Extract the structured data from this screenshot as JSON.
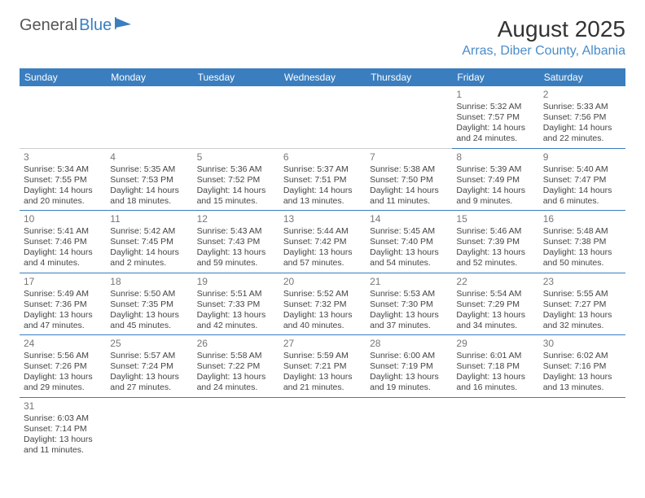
{
  "logo": {
    "text1": "General",
    "text2": "Blue"
  },
  "title": "August 2025",
  "location": "Arras, Diber County, Albania",
  "day_headers": [
    "Sunday",
    "Monday",
    "Tuesday",
    "Wednesday",
    "Thursday",
    "Friday",
    "Saturday"
  ],
  "colors": {
    "accent": "#3a7ebf",
    "text": "#333333",
    "muted": "#777777",
    "bg": "#ffffff"
  },
  "weeks": [
    [
      null,
      null,
      null,
      null,
      null,
      {
        "d": "1",
        "sr": "Sunrise: 5:32 AM",
        "ss": "Sunset: 7:57 PM",
        "dl1": "Daylight: 14 hours",
        "dl2": "and 24 minutes."
      },
      {
        "d": "2",
        "sr": "Sunrise: 5:33 AM",
        "ss": "Sunset: 7:56 PM",
        "dl1": "Daylight: 14 hours",
        "dl2": "and 22 minutes."
      }
    ],
    [
      {
        "d": "3",
        "sr": "Sunrise: 5:34 AM",
        "ss": "Sunset: 7:55 PM",
        "dl1": "Daylight: 14 hours",
        "dl2": "and 20 minutes."
      },
      {
        "d": "4",
        "sr": "Sunrise: 5:35 AM",
        "ss": "Sunset: 7:53 PM",
        "dl1": "Daylight: 14 hours",
        "dl2": "and 18 minutes."
      },
      {
        "d": "5",
        "sr": "Sunrise: 5:36 AM",
        "ss": "Sunset: 7:52 PM",
        "dl1": "Daylight: 14 hours",
        "dl2": "and 15 minutes."
      },
      {
        "d": "6",
        "sr": "Sunrise: 5:37 AM",
        "ss": "Sunset: 7:51 PM",
        "dl1": "Daylight: 14 hours",
        "dl2": "and 13 minutes."
      },
      {
        "d": "7",
        "sr": "Sunrise: 5:38 AM",
        "ss": "Sunset: 7:50 PM",
        "dl1": "Daylight: 14 hours",
        "dl2": "and 11 minutes."
      },
      {
        "d": "8",
        "sr": "Sunrise: 5:39 AM",
        "ss": "Sunset: 7:49 PM",
        "dl1": "Daylight: 14 hours",
        "dl2": "and 9 minutes."
      },
      {
        "d": "9",
        "sr": "Sunrise: 5:40 AM",
        "ss": "Sunset: 7:47 PM",
        "dl1": "Daylight: 14 hours",
        "dl2": "and 6 minutes."
      }
    ],
    [
      {
        "d": "10",
        "sr": "Sunrise: 5:41 AM",
        "ss": "Sunset: 7:46 PM",
        "dl1": "Daylight: 14 hours",
        "dl2": "and 4 minutes."
      },
      {
        "d": "11",
        "sr": "Sunrise: 5:42 AM",
        "ss": "Sunset: 7:45 PM",
        "dl1": "Daylight: 14 hours",
        "dl2": "and 2 minutes."
      },
      {
        "d": "12",
        "sr": "Sunrise: 5:43 AM",
        "ss": "Sunset: 7:43 PM",
        "dl1": "Daylight: 13 hours",
        "dl2": "and 59 minutes."
      },
      {
        "d": "13",
        "sr": "Sunrise: 5:44 AM",
        "ss": "Sunset: 7:42 PM",
        "dl1": "Daylight: 13 hours",
        "dl2": "and 57 minutes."
      },
      {
        "d": "14",
        "sr": "Sunrise: 5:45 AM",
        "ss": "Sunset: 7:40 PM",
        "dl1": "Daylight: 13 hours",
        "dl2": "and 54 minutes."
      },
      {
        "d": "15",
        "sr": "Sunrise: 5:46 AM",
        "ss": "Sunset: 7:39 PM",
        "dl1": "Daylight: 13 hours",
        "dl2": "and 52 minutes."
      },
      {
        "d": "16",
        "sr": "Sunrise: 5:48 AM",
        "ss": "Sunset: 7:38 PM",
        "dl1": "Daylight: 13 hours",
        "dl2": "and 50 minutes."
      }
    ],
    [
      {
        "d": "17",
        "sr": "Sunrise: 5:49 AM",
        "ss": "Sunset: 7:36 PM",
        "dl1": "Daylight: 13 hours",
        "dl2": "and 47 minutes."
      },
      {
        "d": "18",
        "sr": "Sunrise: 5:50 AM",
        "ss": "Sunset: 7:35 PM",
        "dl1": "Daylight: 13 hours",
        "dl2": "and 45 minutes."
      },
      {
        "d": "19",
        "sr": "Sunrise: 5:51 AM",
        "ss": "Sunset: 7:33 PM",
        "dl1": "Daylight: 13 hours",
        "dl2": "and 42 minutes."
      },
      {
        "d": "20",
        "sr": "Sunrise: 5:52 AM",
        "ss": "Sunset: 7:32 PM",
        "dl1": "Daylight: 13 hours",
        "dl2": "and 40 minutes."
      },
      {
        "d": "21",
        "sr": "Sunrise: 5:53 AM",
        "ss": "Sunset: 7:30 PM",
        "dl1": "Daylight: 13 hours",
        "dl2": "and 37 minutes."
      },
      {
        "d": "22",
        "sr": "Sunrise: 5:54 AM",
        "ss": "Sunset: 7:29 PM",
        "dl1": "Daylight: 13 hours",
        "dl2": "and 34 minutes."
      },
      {
        "d": "23",
        "sr": "Sunrise: 5:55 AM",
        "ss": "Sunset: 7:27 PM",
        "dl1": "Daylight: 13 hours",
        "dl2": "and 32 minutes."
      }
    ],
    [
      {
        "d": "24",
        "sr": "Sunrise: 5:56 AM",
        "ss": "Sunset: 7:26 PM",
        "dl1": "Daylight: 13 hours",
        "dl2": "and 29 minutes."
      },
      {
        "d": "25",
        "sr": "Sunrise: 5:57 AM",
        "ss": "Sunset: 7:24 PM",
        "dl1": "Daylight: 13 hours",
        "dl2": "and 27 minutes."
      },
      {
        "d": "26",
        "sr": "Sunrise: 5:58 AM",
        "ss": "Sunset: 7:22 PM",
        "dl1": "Daylight: 13 hours",
        "dl2": "and 24 minutes."
      },
      {
        "d": "27",
        "sr": "Sunrise: 5:59 AM",
        "ss": "Sunset: 7:21 PM",
        "dl1": "Daylight: 13 hours",
        "dl2": "and 21 minutes."
      },
      {
        "d": "28",
        "sr": "Sunrise: 6:00 AM",
        "ss": "Sunset: 7:19 PM",
        "dl1": "Daylight: 13 hours",
        "dl2": "and 19 minutes."
      },
      {
        "d": "29",
        "sr": "Sunrise: 6:01 AM",
        "ss": "Sunset: 7:18 PM",
        "dl1": "Daylight: 13 hours",
        "dl2": "and 16 minutes."
      },
      {
        "d": "30",
        "sr": "Sunrise: 6:02 AM",
        "ss": "Sunset: 7:16 PM",
        "dl1": "Daylight: 13 hours",
        "dl2": "and 13 minutes."
      }
    ],
    [
      {
        "d": "31",
        "sr": "Sunrise: 6:03 AM",
        "ss": "Sunset: 7:14 PM",
        "dl1": "Daylight: 13 hours",
        "dl2": "and 11 minutes."
      },
      null,
      null,
      null,
      null,
      null,
      null
    ]
  ]
}
